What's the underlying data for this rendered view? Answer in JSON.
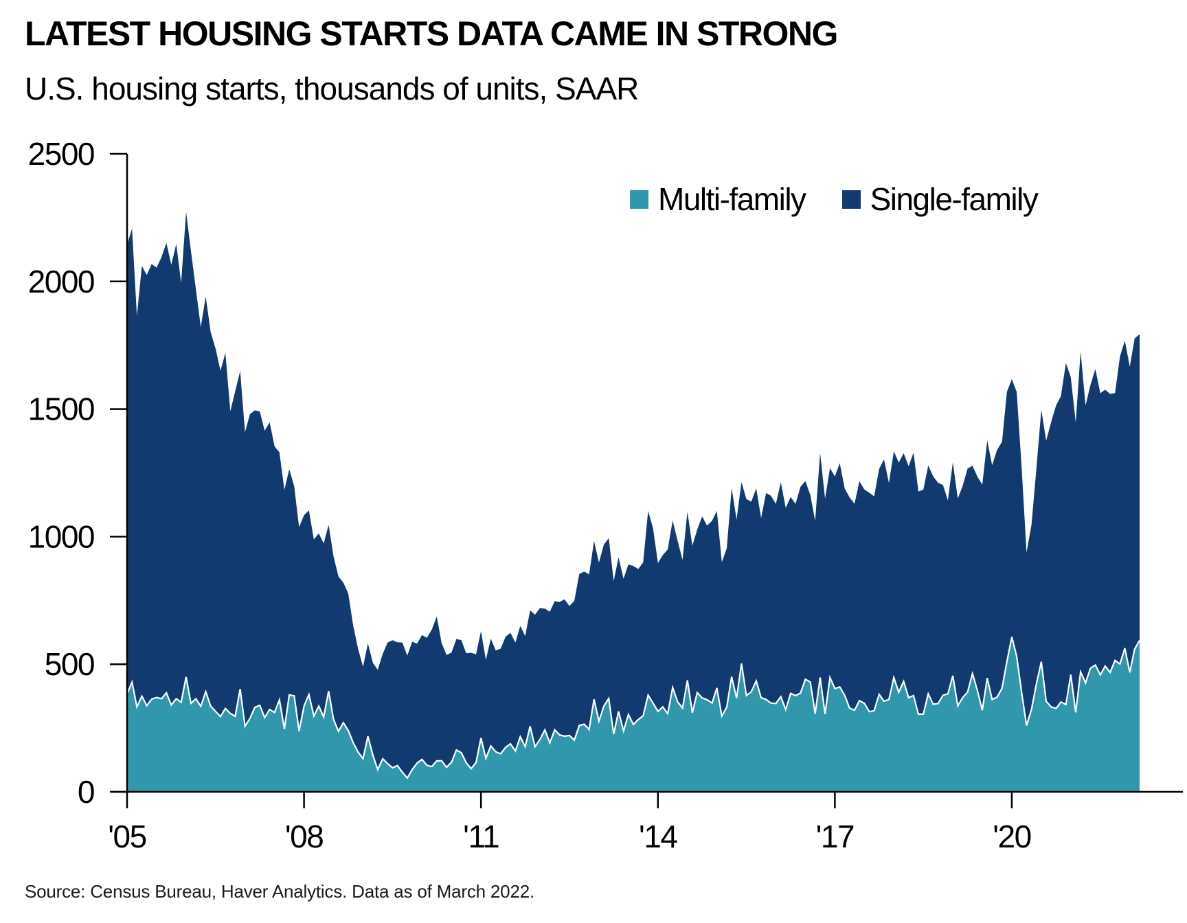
{
  "header": {
    "title": "LATEST HOUSING STARTS DATA CAME IN STRONG",
    "subtitle": "U.S. housing starts, thousands of units, SAAR"
  },
  "legend": {
    "multi_family": "Multi-family",
    "single_family": "Single-family"
  },
  "footer": {
    "source": "Source: Census Bureau, Haver Analytics. Data as of March 2022."
  },
  "chart_data": {
    "type": "area",
    "stacked": true,
    "title": "LATEST HOUSING STARTS DATA CAME IN STRONG",
    "subtitle": "U.S. housing starts, thousands of units, SAAR",
    "unit": "thousands of units, SAAR",
    "frequency": "monthly",
    "x_start": "2005-01",
    "x_end": "2022-03",
    "ylim": [
      0,
      2500
    ],
    "y_ticks": [
      0,
      500,
      1000,
      1500,
      2000,
      2500
    ],
    "x_ticks": [
      {
        "label": "'05",
        "year": 2005
      },
      {
        "label": "'08",
        "year": 2008
      },
      {
        "label": "'11",
        "year": 2011
      },
      {
        "label": "'14",
        "year": 2014
      },
      {
        "label": "'17",
        "year": 2017
      },
      {
        "label": "'20",
        "year": 2020
      }
    ],
    "grid": false,
    "legend_position": "top-right-inside",
    "axis_color": "#000000",
    "boundary_line_color": "#ffffff",
    "series": [
      {
        "name": "Multi-family",
        "color": "#3097AC",
        "values": [
          384,
          430,
          333,
          375,
          338,
          363,
          370,
          365,
          388,
          340,
          365,
          351,
          450,
          347,
          365,
          335,
          393,
          336,
          315,
          295,
          327,
          307,
          296,
          403,
          257,
          288,
          331,
          339,
          291,
          323,
          311,
          361,
          246,
          380,
          376,
          238,
          336,
          381,
          297,
          336,
          293,
          395,
          285,
          237,
          271,
          240,
          193,
          156,
          130,
          218,
          144,
          87,
          130,
          111,
          94,
          103,
          77,
          54,
          87,
          113,
          127,
          104,
          99,
          121,
          122,
          96,
          116,
          164,
          153,
          114,
          91,
          115,
          211,
          131,
          180,
          157,
          149,
          174,
          188,
          160,
          216,
          177,
          257,
          177,
          205,
          243,
          192,
          243,
          223,
          218,
          221,
          203,
          260,
          265,
          244,
          363,
          277,
          336,
          366,
          226,
          315,
          239,
          303,
          264,
          283,
          298,
          379,
          348,
          315,
          333,
          306,
          409,
          353,
          328,
          437,
          310,
          389,
          368,
          361,
          348,
          407,
          297,
          332,
          451,
          367,
          503,
          377,
          392,
          435,
          369,
          362,
          348,
          346,
          373,
          322,
          386,
          377,
          387,
          441,
          430,
          306,
          448,
          305,
          448,
          405,
          411,
          378,
          328,
          320,
          357,
          347,
          314,
          318,
          382,
          355,
          362,
          448,
          390,
          433,
          369,
          377,
          304,
          305,
          384,
          343,
          346,
          378,
          384,
          455,
          337,
          369,
          391,
          463,
          397,
          320,
          446,
          362,
          371,
          406,
          510,
          607,
          530,
          389,
          260,
          323,
          422,
          510,
          355,
          333,
          327,
          352,
          342,
          459,
          311,
          470,
          427,
          484,
          497,
          458,
          493,
          468,
          515,
          501,
          563,
          468,
          560,
          593
        ]
      },
      {
        "name": "Single-family",
        "color": "#113A70",
        "values": [
          1760,
          1777,
          1531,
          1686,
          1687,
          1705,
          1684,
          1730,
          1763,
          1725,
          1782,
          1643,
          1823,
          1772,
          1604,
          1486,
          1549,
          1466,
          1422,
          1355,
          1393,
          1184,
          1274,
          1246,
          1152,
          1192,
          1164,
          1151,
          1124,
          1125,
          1043,
          969,
          937,
          884,
          821,
          799,
          748,
          722,
          692,
          677,
          680,
          651,
          638,
          607,
          549,
          537,
          459,
          404,
          360,
          364,
          361,
          391,
          410,
          474,
          500,
          483,
          508,
          480,
          501,
          468,
          487,
          500,
          537,
          566,
          461,
          440,
          430,
          435,
          441,
          429,
          454,
          424,
          419,
          386,
          420,
          397,
          412,
          434,
          435,
          425,
          434,
          433,
          454,
          517,
          515,
          475,
          514,
          504,
          521,
          536,
          507,
          546,
          594,
          598,
          608,
          620,
          621,
          633,
          628,
          600,
          604,
          596,
          588,
          621,
          590,
          601,
          722,
          686,
          582,
          595,
          644,
          654,
          631,
          581,
          661,
          654,
          639,
          711,
          682,
          714,
          694,
          603,
          622,
          739,
          700,
          710,
          770,
          745,
          754,
          704,
          809,
          812,
          782,
          840,
          791,
          769,
          751,
          808,
          777,
          734,
          756,
          880,
          844,
          820,
          831,
          877,
          811,
          826,
          809,
          860,
          838,
          858,
          840,
          883,
          948,
          848,
          886,
          900,
          894,
          907,
          952,
          873,
          879,
          895,
          893,
          865,
          824,
          758,
          836,
          812,
          830,
          876,
          815,
          838,
          884,
          931,
          918,
          969,
          965,
          1057,
          1010,
          1037,
          880,
          678,
          723,
          843,
          987,
          1021,
          1115,
          1187,
          1199,
          1338,
          1166,
          1136,
          1255,
          1087,
          1110,
          1160,
          1104,
          1083,
          1091,
          1048,
          1205,
          1205,
          1198,
          1217,
          1200
        ]
      }
    ]
  }
}
